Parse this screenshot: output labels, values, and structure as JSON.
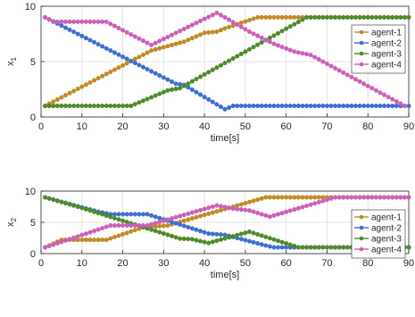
{
  "colors": {
    "agent-1": "#c08a26",
    "agent-2": "#3c6fd0",
    "agent-3": "#4f8a2a",
    "agent-4": "#cc5fb8",
    "grid": "#e3e3e3",
    "axis": "#262626"
  },
  "chart_data": [
    {
      "type": "line",
      "title": "",
      "xlabel": "time[s]",
      "ylabel_main": "x",
      "ylabel_sub": "1",
      "xlim": [
        0,
        90
      ],
      "ylim": [
        0,
        10
      ],
      "xticks": [
        0,
        10,
        20,
        30,
        40,
        50,
        60,
        70,
        80,
        90
      ],
      "yticks": [
        0,
        5,
        10
      ],
      "grid": true,
      "legend_position": "right",
      "series": [
        {
          "name": "agent-1",
          "color": "#c08a26",
          "points": [
            [
              1,
              1
            ],
            [
              27,
              6
            ],
            [
              35,
              6.8
            ],
            [
              40,
              7.6
            ],
            [
              43,
              7.7
            ],
            [
              45,
              8.0
            ],
            [
              53,
              9
            ],
            [
              90,
              9
            ]
          ]
        },
        {
          "name": "agent-2",
          "color": "#3c6fd0",
          "points": [
            [
              1,
              9
            ],
            [
              33,
              3.0
            ],
            [
              35,
              2.9
            ],
            [
              45,
              0.7
            ],
            [
              47,
              1
            ],
            [
              90,
              1
            ]
          ]
        },
        {
          "name": "agent-3",
          "color": "#4f8a2a",
          "points": [
            [
              1,
              1
            ],
            [
              22,
              1
            ],
            [
              31,
              2.4
            ],
            [
              34,
              2.6
            ],
            [
              65,
              9
            ],
            [
              90,
              9
            ]
          ]
        },
        {
          "name": "agent-4",
          "color": "#cc5fb8",
          "points": [
            [
              1,
              9
            ],
            [
              3,
              8.6
            ],
            [
              16,
              8.6
            ],
            [
              27,
              6.5
            ],
            [
              43,
              9.4
            ],
            [
              45,
              9.0
            ],
            [
              51,
              7.7
            ],
            [
              57,
              6.6
            ],
            [
              62,
              5.9
            ],
            [
              66,
              5.6
            ],
            [
              89,
              1
            ]
          ]
        }
      ]
    },
    {
      "type": "line",
      "title": "",
      "xlabel": "time[s]",
      "ylabel_main": "x",
      "ylabel_sub": "2",
      "xlim": [
        0,
        90
      ],
      "ylim": [
        0,
        10
      ],
      "xticks": [
        0,
        10,
        20,
        30,
        40,
        50,
        60,
        70,
        80,
        90
      ],
      "yticks": [
        0,
        5,
        10
      ],
      "grid": true,
      "legend_position": "right",
      "series": [
        {
          "name": "agent-1",
          "color": "#c08a26",
          "points": [
            [
              1,
              1
            ],
            [
              5,
              2.2
            ],
            [
              16,
              2.2
            ],
            [
              25,
              4.2
            ],
            [
              31,
              4.5
            ],
            [
              55,
              9
            ],
            [
              90,
              9
            ]
          ]
        },
        {
          "name": "agent-2",
          "color": "#3c6fd0",
          "points": [
            [
              1,
              9
            ],
            [
              14,
              6.7
            ],
            [
              17,
              6.3
            ],
            [
              26,
              6.3
            ],
            [
              41,
              3.2
            ],
            [
              45,
              3.0
            ],
            [
              55,
              1.3
            ],
            [
              57,
              1
            ],
            [
              90,
              1
            ]
          ]
        },
        {
          "name": "agent-3",
          "color": "#4f8a2a",
          "points": [
            [
              1,
              9
            ],
            [
              10,
              7.3
            ],
            [
              34,
              2.4
            ],
            [
              37,
              2.3
            ],
            [
              41,
              1.7
            ],
            [
              51,
              3.5
            ],
            [
              63,
              1
            ],
            [
              90,
              1
            ]
          ]
        },
        {
          "name": "agent-4",
          "color": "#cc5fb8",
          "points": [
            [
              1,
              1
            ],
            [
              17,
              4.5
            ],
            [
              26,
              4.5
            ],
            [
              43,
              7.7
            ],
            [
              47,
              7.2
            ],
            [
              51,
              6.9
            ],
            [
              56,
              5.9
            ],
            [
              72,
              9
            ],
            [
              90,
              9
            ]
          ]
        }
      ]
    }
  ]
}
